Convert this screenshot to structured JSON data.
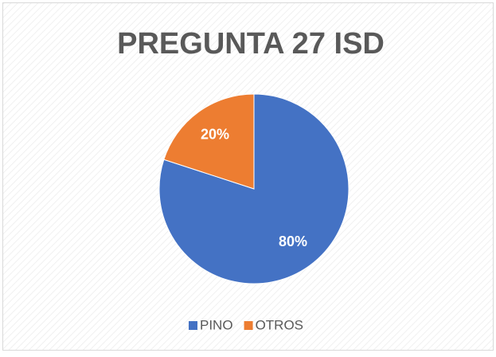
{
  "chart_data": {
    "type": "pie",
    "title": "PREGUNTA 27 ISD",
    "categories": [
      "PINO",
      "OTROS"
    ],
    "values": [
      80,
      20
    ],
    "value_labels": [
      "80%",
      "20%"
    ],
    "colors": [
      "#4472c4",
      "#ed7d31"
    ],
    "legend": "bottom"
  }
}
